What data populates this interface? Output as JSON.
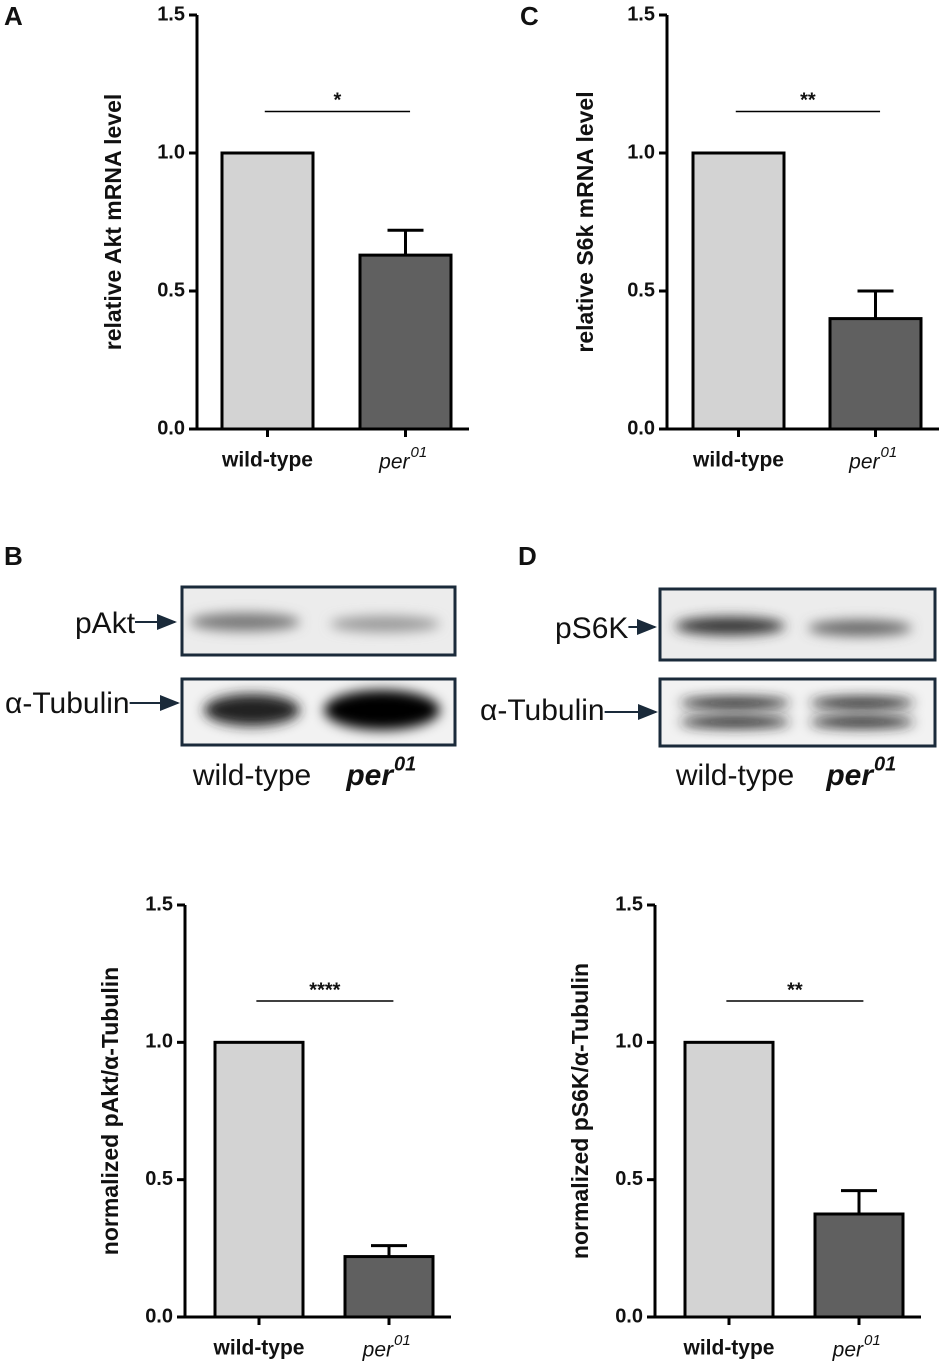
{
  "panel_labels": [
    "A",
    "C",
    "B",
    "D"
  ],
  "chart_data": [
    {
      "type": "bar",
      "ylabel": "relative Akt mRNA level",
      "categories": [
        "wild-type",
        "per"
      ],
      "category_superscripts": [
        null,
        "01"
      ],
      "values": [
        1.0,
        0.63
      ],
      "errors": [
        null,
        0.09
      ],
      "colors": [
        "#d3d3d3",
        "#606060"
      ],
      "ylim": [
        0,
        1.5
      ],
      "yticks": [
        {
          "value": 0,
          "label": "0.0"
        },
        {
          "value": 0.5,
          "label": "0.5"
        },
        {
          "value": 1,
          "label": "1.0"
        },
        {
          "value": 1.5,
          "label": "1.5"
        }
      ],
      "annotation": "*"
    },
    {
      "type": "bar",
      "ylabel": "relative S6k mRNA level",
      "categories": [
        "wild-type",
        "per"
      ],
      "category_superscripts": [
        null,
        "01"
      ],
      "values": [
        1.0,
        0.4
      ],
      "errors": [
        null,
        0.1
      ],
      "colors": [
        "#d3d3d3",
        "#606060"
      ],
      "ylim": [
        0,
        1.5
      ],
      "yticks": [
        {
          "value": 0,
          "label": "0.0"
        },
        {
          "value": 0.5,
          "label": "0.5"
        },
        {
          "value": 1,
          "label": "1.0"
        },
        {
          "value": 1.5,
          "label": "1.5"
        }
      ],
      "annotation": "**"
    },
    {
      "type": "bar",
      "ylabel": "normalized pAkt/α-Tubulin",
      "categories": [
        "wild-type",
        "per"
      ],
      "category_superscripts": [
        null,
        "01"
      ],
      "values": [
        1.0,
        0.22
      ],
      "errors": [
        null,
        0.04
      ],
      "colors": [
        "#d3d3d3",
        "#606060"
      ],
      "ylim": [
        0,
        1.5
      ],
      "yticks": [
        {
          "value": 0,
          "label": "0.0"
        },
        {
          "value": 0.5,
          "label": "0.5"
        },
        {
          "value": 1,
          "label": "1.0"
        },
        {
          "value": 1.5,
          "label": "1.5"
        }
      ],
      "annotation": "****"
    },
    {
      "type": "bar",
      "ylabel": "normalized pS6K/α-Tubulin",
      "categories": [
        "wild-type",
        "per"
      ],
      "category_superscripts": [
        null,
        "01"
      ],
      "values": [
        1.0,
        0.375
      ],
      "errors": [
        null,
        0.085
      ],
      "colors": [
        "#d3d3d3",
        "#606060"
      ],
      "ylim": [
        0,
        1.5
      ],
      "yticks": [
        {
          "value": 0,
          "label": "0.0"
        },
        {
          "value": 0.5,
          "label": "0.5"
        },
        {
          "value": 1,
          "label": "1.0"
        },
        {
          "value": 1.5,
          "label": "1.5"
        }
      ],
      "annotation": "**"
    }
  ],
  "blots": [
    {
      "rows": [
        "pAkt",
        "α-Tubulin"
      ],
      "lanes": [
        "wild-type",
        "per"
      ],
      "lane_superscripts": [
        null,
        "01"
      ]
    },
    {
      "rows": [
        "pS6K",
        "α-Tubulin"
      ],
      "lanes": [
        "wild-type",
        "per"
      ],
      "lane_superscripts": [
        null,
        "01"
      ]
    }
  ]
}
